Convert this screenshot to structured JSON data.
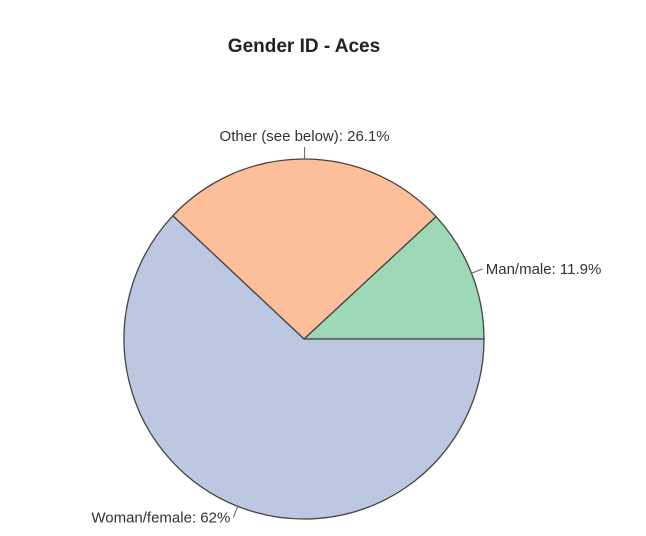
{
  "chart_data": {
    "type": "pie",
    "title": "Gender ID - Aces",
    "slices": [
      {
        "label": "Man/male",
        "value": 11.9,
        "display": "Man/male: 11.9%",
        "color": "#9dd9b7"
      },
      {
        "label": "Other (see below)",
        "value": 26.1,
        "display": "Other (see below): 26.1%",
        "color": "#fcbf99"
      },
      {
        "label": "Woman/female",
        "value": 62,
        "display": "Woman/female: 62%",
        "color": "#bcc7e2"
      }
    ],
    "start_angle_deg": 0,
    "direction": "counterclockwise"
  }
}
